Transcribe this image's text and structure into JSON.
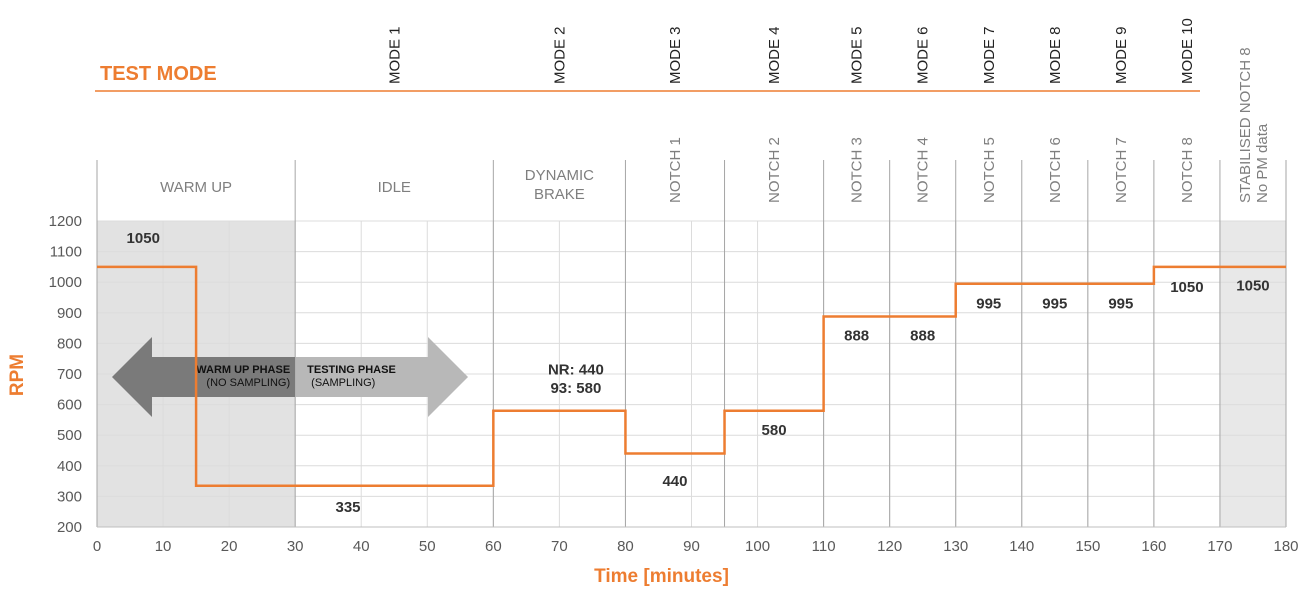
{
  "header": {
    "test_mode_label": "TEST MODE"
  },
  "modes": [
    {
      "label": "MODE 1",
      "x": 45
    },
    {
      "label": "MODE 2",
      "x": 70
    },
    {
      "label": "MODE 3",
      "x": 87.5
    },
    {
      "label": "MODE 4",
      "x": 102.5
    },
    {
      "label": "MODE 5",
      "x": 115
    },
    {
      "label": "MODE 6",
      "x": 125
    },
    {
      "label": "MODE 7",
      "x": 135
    },
    {
      "label": "MODE 8",
      "x": 145
    },
    {
      "label": "MODE 9",
      "x": 155
    },
    {
      "label": "MODE 10",
      "x": 165
    }
  ],
  "phases": [
    {
      "label": "WARM UP",
      "x0": 0,
      "x1": 30,
      "rotated": false
    },
    {
      "label": "IDLE",
      "x0": 30,
      "x1": 60,
      "rotated": false
    },
    {
      "label": "DYNAMIC",
      "label2": "BRAKE",
      "x0": 60,
      "x1": 80,
      "rotated": false
    },
    {
      "label": "NOTCH 1",
      "x0": 80,
      "x1": 95,
      "rotated": true
    },
    {
      "label": "NOTCH 2",
      "x0": 95,
      "x1": 110,
      "rotated": true
    },
    {
      "label": "NOTCH 3",
      "x0": 110,
      "x1": 120,
      "rotated": true
    },
    {
      "label": "NOTCH 4",
      "x0": 120,
      "x1": 130,
      "rotated": true
    },
    {
      "label": "NOTCH 5",
      "x0": 130,
      "x1": 140,
      "rotated": true
    },
    {
      "label": "NOTCH 6",
      "x0": 140,
      "x1": 150,
      "rotated": true
    },
    {
      "label": "NOTCH 7",
      "x0": 150,
      "x1": 160,
      "rotated": true
    },
    {
      "label": "NOTCH 8",
      "x0": 160,
      "x1": 170,
      "rotated": true
    },
    {
      "label": "STABILISED NOTCH 8",
      "label2": "No PM data",
      "x0": 170,
      "x1": 180,
      "rotated": true
    }
  ],
  "arrow": {
    "left_bold": "WARM UP PHASE",
    "left_sub": "(NO SAMPLING)",
    "right_bold": "TESTING PHASE",
    "right_sub": "(SAMPLING)"
  },
  "chart_data": {
    "type": "line",
    "step": true,
    "xlabel": "Time [minutes]",
    "ylabel": "RPM",
    "xlim": [
      0,
      180
    ],
    "ylim": [
      200,
      1200
    ],
    "xticks": [
      0,
      10,
      20,
      30,
      40,
      50,
      60,
      70,
      80,
      90,
      100,
      110,
      120,
      130,
      140,
      150,
      160,
      170,
      180
    ],
    "yticks": [
      200,
      300,
      400,
      500,
      600,
      700,
      800,
      900,
      1000,
      1100,
      1200
    ],
    "grid": true,
    "line_color": "#ED7D31",
    "shaded_regions": [
      {
        "x0": 0,
        "x1": 30,
        "color": "#e2e2e2"
      },
      {
        "x0": 170,
        "x1": 180,
        "color": "#e8e8e8"
      }
    ],
    "segments": [
      {
        "x0": 0,
        "x1": 15,
        "y": 1050
      },
      {
        "x0": 15,
        "x1": 60,
        "y": 335
      },
      {
        "x0": 60,
        "x1": 80,
        "y": 580
      },
      {
        "x0": 80,
        "x1": 95,
        "y": 440
      },
      {
        "x0": 95,
        "x1": 110,
        "y": 580
      },
      {
        "x0": 110,
        "x1": 130,
        "y": 888
      },
      {
        "x0": 130,
        "x1": 160,
        "y": 995
      },
      {
        "x0": 160,
        "x1": 180,
        "y": 1050
      }
    ],
    "annotations": [
      {
        "text": "1050",
        "x": 7,
        "y": 1145
      },
      {
        "text": "335",
        "x": 38,
        "y": 265
      },
      {
        "text": "NR: 440",
        "x": 72.5,
        "y": 715
      },
      {
        "text": "93: 580",
        "x": 72.5,
        "y": 655
      },
      {
        "text": "440",
        "x": 87.5,
        "y": 350
      },
      {
        "text": "580",
        "x": 102.5,
        "y": 517
      },
      {
        "text": "888",
        "x": 115,
        "y": 826
      },
      {
        "text": "888",
        "x": 125,
        "y": 826
      },
      {
        "text": "995",
        "x": 135,
        "y": 930
      },
      {
        "text": "995",
        "x": 145,
        "y": 930
      },
      {
        "text": "995",
        "x": 155,
        "y": 930
      },
      {
        "text": "1050",
        "x": 165,
        "y": 985
      },
      {
        "text": "1050",
        "x": 175,
        "y": 990
      }
    ]
  }
}
